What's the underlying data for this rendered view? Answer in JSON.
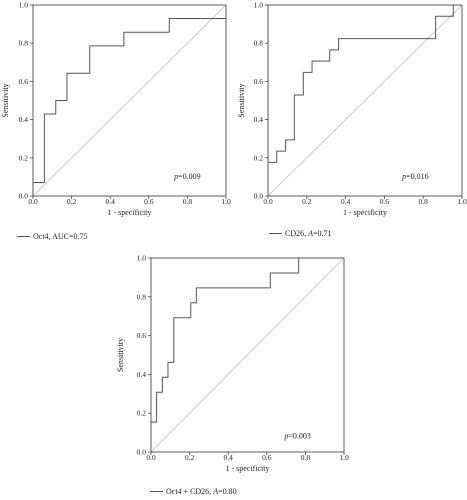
{
  "chart_data": [
    {
      "type": "line",
      "xlabel": "1 - specificity",
      "ylabel": "Sensitivity",
      "xlim": [
        0,
        1
      ],
      "ylim": [
        0,
        1
      ],
      "x_ticks": [
        "0.0",
        "0.2",
        "0.4",
        "0.6",
        "0.8",
        "1.0"
      ],
      "y_ticks": [
        "0.0",
        "0.2",
        "0.4",
        "0.6",
        "0.8",
        "1.0"
      ],
      "annotation": {
        "prefix": "p",
        "text": "=0.009"
      },
      "legend": {
        "prefix": "Oct4, AUC=0.75",
        "text": ""
      },
      "series": [
        {
          "x": [
            0,
            0,
            0.059,
            0.059,
            0.118,
            0.118,
            0.176,
            0.176,
            0.294,
            0.294,
            0.471,
            0.471,
            0.706,
            0.706,
            1.0,
            1.0
          ],
          "y": [
            0,
            0.071,
            0.071,
            0.429,
            0.429,
            0.5,
            0.5,
            0.643,
            0.643,
            0.786,
            0.786,
            0.857,
            0.857,
            0.929,
            0.929,
            1.0
          ]
        },
        {
          "x": [
            0,
            1
          ],
          "y": [
            0,
            1
          ]
        }
      ]
    },
    {
      "type": "line",
      "xlabel": "1 - specificity",
      "ylabel": "Sensitivity",
      "xlim": [
        0,
        1
      ],
      "ylim": [
        0,
        1
      ],
      "x_ticks": [
        "0.0",
        "0.2",
        "0.4",
        "0.6",
        "0.8",
        "1.0"
      ],
      "y_ticks": [
        "0.0",
        "0.2",
        "0.4",
        "0.6",
        "0.8",
        "1.0"
      ],
      "annotation": {
        "prefix": "p",
        "text": "=0.016"
      },
      "legend": {
        "prefix": "CD26, ",
        "italic": "A",
        "text": "=0.71"
      },
      "series": [
        {
          "x": [
            0,
            0,
            0.045,
            0.045,
            0.091,
            0.091,
            0.136,
            0.136,
            0.182,
            0.182,
            0.227,
            0.227,
            0.318,
            0.318,
            0.364,
            0.364,
            0.409,
            0.409,
            0.864,
            0.864,
            0.955,
            0.955,
            1.0
          ],
          "y": [
            0,
            0.176,
            0.176,
            0.235,
            0.235,
            0.294,
            0.294,
            0.529,
            0.529,
            0.647,
            0.647,
            0.706,
            0.706,
            0.765,
            0.765,
            0.824,
            0.824,
            0.824,
            0.824,
            0.941,
            0.941,
            1.0,
            1.0
          ]
        },
        {
          "x": [
            0,
            1
          ],
          "y": [
            0,
            1
          ]
        }
      ]
    },
    {
      "type": "line",
      "xlabel": "1 - specificity",
      "ylabel": "Sensitivity",
      "xlim": [
        0,
        1
      ],
      "ylim": [
        0,
        1
      ],
      "x_ticks": [
        "0.0",
        "0.2",
        "0.4",
        "0.6",
        "0.8",
        "1.0"
      ],
      "y_ticks": [
        "0.0",
        "0.2",
        "0.4",
        "0.6",
        "0.8",
        "1.0"
      ],
      "annotation": {
        "prefix": "p",
        "text": "=0.003"
      },
      "legend": {
        "prefix": "Oct4 + CD26, ",
        "italic": "A",
        "text": "=0.80"
      },
      "series": [
        {
          "x": [
            0,
            0,
            0.029,
            0.029,
            0.059,
            0.059,
            0.088,
            0.088,
            0.118,
            0.118,
            0.147,
            0.147,
            0.206,
            0.206,
            0.235,
            0.235,
            0.265,
            0.265,
            0.618,
            0.618,
            0.765,
            0.765,
            1.0
          ],
          "y": [
            0,
            0.154,
            0.154,
            0.308,
            0.308,
            0.385,
            0.385,
            0.462,
            0.462,
            0.692,
            0.692,
            0.692,
            0.692,
            0.769,
            0.769,
            0.846,
            0.846,
            0.846,
            0.846,
            0.923,
            0.923,
            1.0,
            1.0
          ]
        },
        {
          "x": [
            0,
            1
          ],
          "y": [
            0,
            1
          ]
        }
      ]
    }
  ],
  "colors": {
    "roc_line": "#555555",
    "reference_line": "#bbbbbb",
    "frame": "#333333"
  }
}
